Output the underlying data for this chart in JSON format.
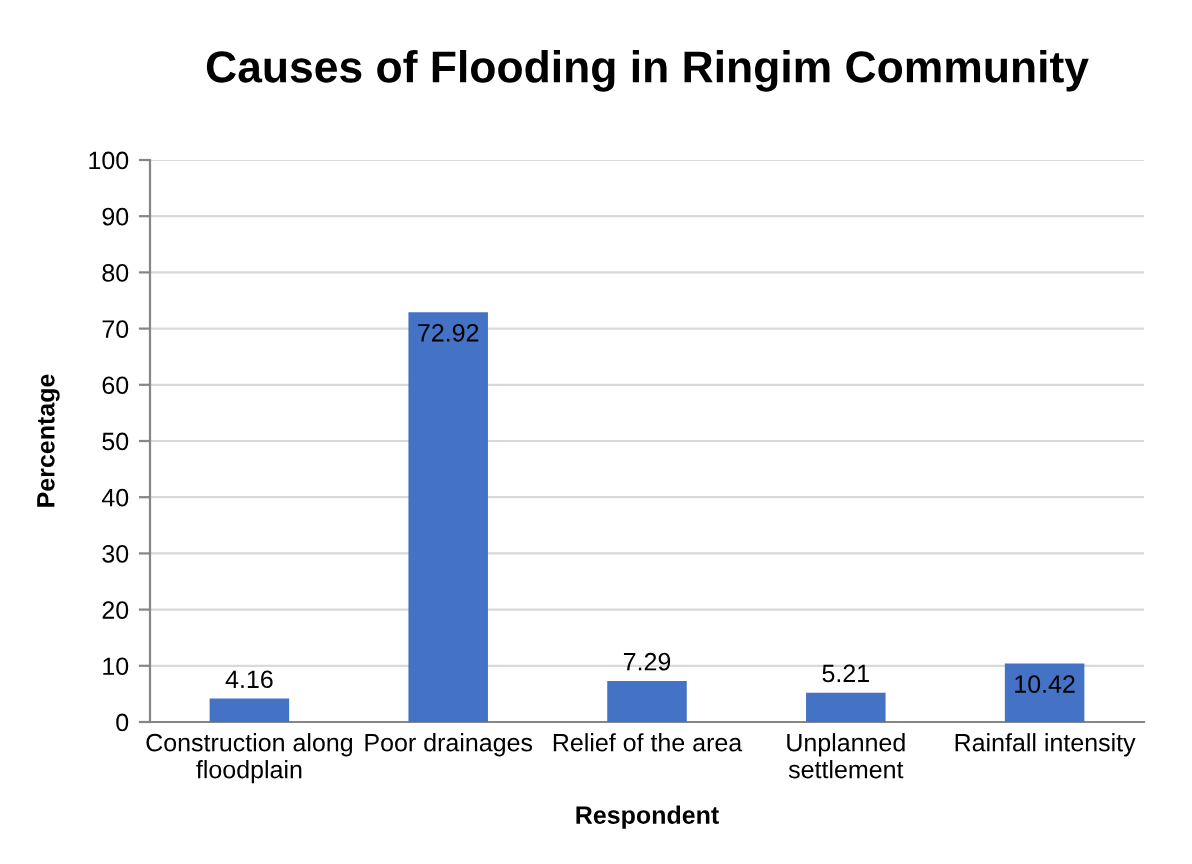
{
  "chart_data": {
    "type": "bar",
    "title": "Causes of Flooding in Ringim Community",
    "xlabel": "Respondent",
    "ylabel": "Percentage",
    "categories": [
      "Construction along\nfloodplain",
      "Poor drainages",
      "Relief of the area",
      "Unplanned\nsettlement",
      "Rainfall intensity"
    ],
    "values": [
      4.16,
      72.92,
      7.29,
      5.21,
      10.42
    ],
    "color": "#4472c4",
    "ylim": [
      0,
      100
    ],
    "yticks": [
      0,
      10,
      20,
      30,
      40,
      50,
      60,
      70,
      80,
      90,
      100
    ],
    "grid": "y",
    "data_labels": true
  }
}
